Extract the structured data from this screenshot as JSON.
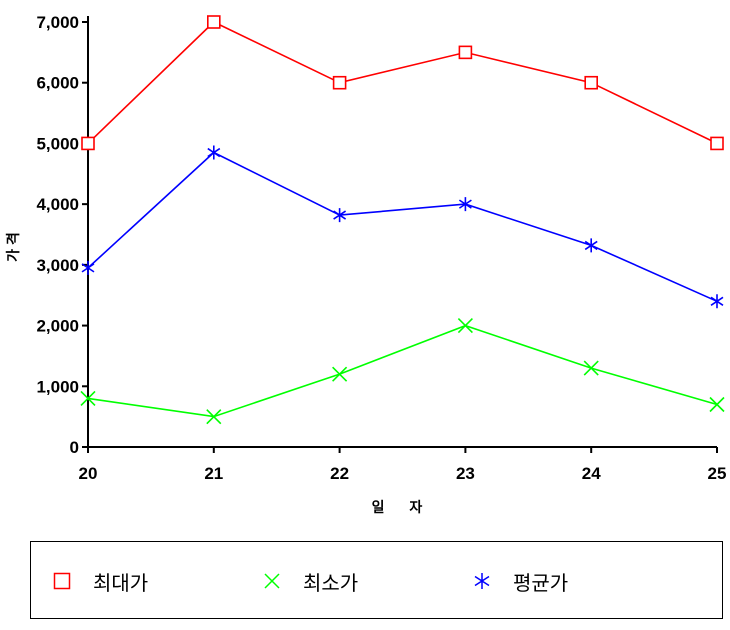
{
  "chart_data": {
    "type": "line",
    "categories": [
      "20",
      "21",
      "22",
      "23",
      "24",
      "25"
    ],
    "series": [
      {
        "name": "최대가",
        "values": [
          5000,
          7000,
          6000,
          6500,
          6000,
          5000
        ],
        "color": "#ff0000",
        "marker": "square"
      },
      {
        "name": "최소가",
        "values": [
          800,
          500,
          1200,
          2000,
          1300,
          700
        ],
        "color": "#00ff00",
        "marker": "x"
      },
      {
        "name": "평균가",
        "values": [
          2950,
          4850,
          3820,
          4000,
          3320,
          2400
        ],
        "color": "#0000ff",
        "marker": "asterisk"
      }
    ],
    "xlabel": "일 자",
    "ylabel": "가격",
    "ylim": [
      0,
      7000
    ],
    "yticks": [
      0,
      1000,
      2000,
      3000,
      4000,
      5000,
      6000,
      7000
    ],
    "ytick_labels": [
      "0",
      "1,000",
      "2,000",
      "3,000",
      "4,000",
      "5,000",
      "6,000",
      "7,000"
    ],
    "grid": false,
    "legend_position": "bottom"
  }
}
